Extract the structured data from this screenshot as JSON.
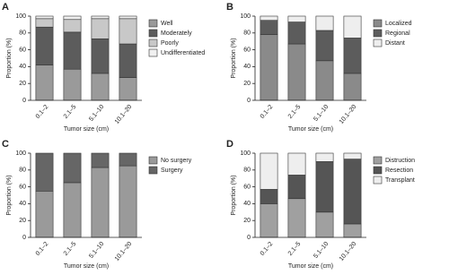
{
  "chart_data": [
    {
      "type": "stacked_bar",
      "label": "A",
      "ylabel": "Proportion (%)",
      "xlabel": "Tumor size (cm)",
      "categories": [
        "0.1–2",
        "2.1–5",
        "5.1–10",
        "10.1–20"
      ],
      "series": [
        {
          "name": "Well",
          "color": "#9a9a9a",
          "values": [
            42,
            37,
            32,
            27
          ]
        },
        {
          "name": "Moderately",
          "color": "#5c5c5c",
          "values": [
            45,
            44,
            41,
            40
          ]
        },
        {
          "name": "Poorly",
          "color": "#c8c8c8",
          "values": [
            10,
            15,
            24,
            30
          ]
        },
        {
          "name": "Undifferentiated",
          "color": "#f0f0f0",
          "values": [
            3,
            4,
            3,
            3
          ]
        }
      ],
      "ylim": [
        0,
        100
      ],
      "yticks": [
        0,
        20,
        40,
        60,
        80,
        100
      ],
      "legend": "right"
    },
    {
      "type": "stacked_bar",
      "label": "B",
      "ylabel": "Proportion (%)",
      "xlabel": "Tumor size (cm)",
      "categories": [
        "0.1–2",
        "2.1–5",
        "5.1–10",
        "10.1–20"
      ],
      "series": [
        {
          "name": "Localized",
          "color": "#8a8a8a",
          "values": [
            78,
            67,
            47,
            32
          ]
        },
        {
          "name": "Regional",
          "color": "#5c5c5c",
          "values": [
            17,
            26,
            36,
            42
          ]
        },
        {
          "name": "Distant",
          "color": "#eeeeee",
          "values": [
            5,
            7,
            17,
            26
          ]
        }
      ],
      "ylim": [
        0,
        100
      ],
      "yticks": [
        0,
        20,
        40,
        60,
        80,
        100
      ],
      "legend": "right"
    },
    {
      "type": "stacked_bar",
      "label": "C",
      "ylabel": "Proportion (%)",
      "xlabel": "Tumor size (cm)",
      "categories": [
        "0.1–2",
        "2.1–5",
        "5.1–10",
        "10.1–20"
      ],
      "series": [
        {
          "name": "No surgery",
          "color": "#9a9a9a",
          "values": [
            55,
            65,
            83,
            85
          ]
        },
        {
          "name": "Surgery",
          "color": "#666666",
          "values": [
            45,
            35,
            17,
            15
          ]
        }
      ],
      "ylim": [
        0,
        100
      ],
      "yticks": [
        0,
        20,
        40,
        60,
        80,
        100
      ],
      "legend": "right"
    },
    {
      "type": "stacked_bar",
      "label": "D",
      "ylabel": "Proportion (%)",
      "xlabel": "Tumor size (cm)",
      "categories": [
        "0.1–2",
        "2.1–5",
        "5.1–10",
        "10.1–20"
      ],
      "series": [
        {
          "name": "Distruction",
          "color": "#a0a0a0",
          "values": [
            40,
            46,
            30,
            16
          ]
        },
        {
          "name": "Resection",
          "color": "#555555",
          "values": [
            17,
            28,
            60,
            77
          ]
        },
        {
          "name": "Transplant",
          "color": "#eeeeee",
          "values": [
            43,
            26,
            10,
            7
          ]
        }
      ],
      "ylim": [
        0,
        100
      ],
      "yticks": [
        0,
        20,
        40,
        60,
        80,
        100
      ],
      "legend": "right"
    }
  ]
}
